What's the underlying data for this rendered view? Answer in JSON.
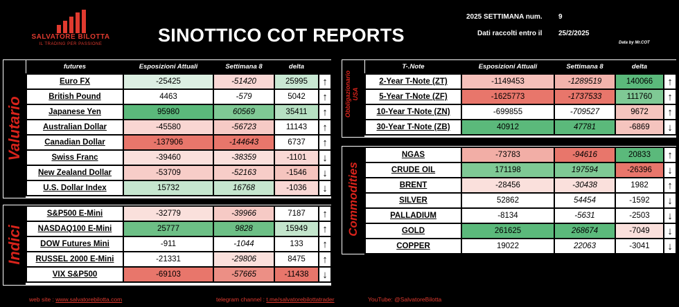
{
  "logo": {
    "name": "SALVATORE BILOTTA",
    "tagline": "IL TRADING PER PASSIONE"
  },
  "title": "SINOTTICO COT REPORTS",
  "week": {
    "label": "2025 SETTIMANA num.",
    "value": "9"
  },
  "collected": {
    "label": "Dati raccolti entro il",
    "value": "25/2/2025"
  },
  "data_by": "Data by Mr.COT",
  "colors": {
    "up_arrow": "#22b14c",
    "down_arrow": "#e02020",
    "brand_red": "#e03a2f",
    "pos_strong": "#5bb97b",
    "neg_strong": "#e8766b"
  },
  "valutario": {
    "label": "Valutario",
    "headers": [
      "futures",
      "Esposizioni Attuali",
      "Settimana 8",
      "delta"
    ],
    "rows": [
      {
        "name": "Euro FX",
        "current": "-25425",
        "prev": "-51420",
        "delta": "25995",
        "arrow": "↑",
        "dir": "up",
        "c1": "#dcefe2",
        "c2": "#f9d8d5",
        "c3": "#c9e8d3"
      },
      {
        "name": "British Pound",
        "current": "4463",
        "prev": "-579",
        "delta": "5042",
        "arrow": "↑",
        "dir": "up",
        "c1": "#ffffff",
        "c2": "#ffffff",
        "c3": "#ffffff"
      },
      {
        "name": "Japanese Yen",
        "current": "95980",
        "prev": "60569",
        "delta": "35411",
        "arrow": "↑",
        "dir": "up",
        "c1": "#5bb97b",
        "c2": "#7fc995",
        "c3": "#b6e0c2"
      },
      {
        "name": "Australian Dollar",
        "current": "-45580",
        "prev": "-56723",
        "delta": "11143",
        "arrow": "↑",
        "dir": "up",
        "c1": "#f9d6d2",
        "c2": "#f6cac5",
        "c3": "#ffffff"
      },
      {
        "name": "Canadian Dollar",
        "current": "-137906",
        "prev": "-144643",
        "delta": "6737",
        "arrow": "↑",
        "dir": "up",
        "c1": "#e8766b",
        "c2": "#e8766b",
        "c3": "#ffffff"
      },
      {
        "name": "Swiss Franc",
        "current": "-39460",
        "prev": "-38359",
        "delta": "-1101",
        "arrow": "↓",
        "dir": "down",
        "c1": "#fae0dc",
        "c2": "#fae0dc",
        "c3": "#f9d8d5"
      },
      {
        "name": "New Zealand Dollar",
        "current": "-53709",
        "prev": "-52163",
        "delta": "-1546",
        "arrow": "↓",
        "dir": "down",
        "c1": "#f7cdc8",
        "c2": "#f7cdc8",
        "c3": "#f5c4be"
      },
      {
        "name": "U.S. Dollar Index",
        "current": "15732",
        "prev": "16768",
        "delta": "-1036",
        "arrow": "↓",
        "dir": "down",
        "c1": "#c6e6cf",
        "c2": "#c6e6cf",
        "c3": "#f9d8d5"
      }
    ]
  },
  "indici": {
    "label": "Indici",
    "rows": [
      {
        "name": "S&P500 E-Mini",
        "current": "-32779",
        "prev": "-39966",
        "delta": "7187",
        "arrow": "↑",
        "dir": "up",
        "c1": "#fae0dc",
        "c2": "#f6cac5",
        "c3": "#ffffff"
      },
      {
        "name": "NASDAQ100 E-Mini",
        "current": "25777",
        "prev": "9828",
        "delta": "15949",
        "arrow": "↑",
        "dir": "up",
        "c1": "#6dbf86",
        "c2": "#6dbf86",
        "c3": "#c3e5cc"
      },
      {
        "name": "DOW Futures Mini",
        "current": "-911",
        "prev": "-1044",
        "delta": "133",
        "arrow": "↑",
        "dir": "up",
        "c1": "#ffffff",
        "c2": "#ffffff",
        "c3": "#ffffff"
      },
      {
        "name": "RUSSEL 2000 E-Mini",
        "current": "-21331",
        "prev": "-29806",
        "delta": "8475",
        "arrow": "↑",
        "dir": "up",
        "c1": "#ffffff",
        "c2": "#fae0dc",
        "c3": "#ffffff"
      },
      {
        "name": "VIX S&P500",
        "current": "-69103",
        "prev": "-57665",
        "delta": "-11438",
        "arrow": "↓",
        "dir": "down",
        "c1": "#e8766b",
        "c2": "#ec8f85",
        "c3": "#e8766b"
      }
    ]
  },
  "obbligazionario": {
    "label": "Obbligazionario USA",
    "label_line1": "Obbligazionario",
    "label_line2": "USA",
    "headers": [
      "T-.Note",
      "Esposizioni Attuali",
      "Settimana 8",
      "delta"
    ],
    "rows": [
      {
        "name": "2-Year T-Note (ZT)",
        "current": "-1149453",
        "prev": "-1289519",
        "delta": "140066",
        "arrow": "↑",
        "dir": "up",
        "c1": "#f5c0ba",
        "c2": "#f2b3ac",
        "c3": "#5bb97b"
      },
      {
        "name": "5-Year T-Note (ZF)",
        "current": "-1625773",
        "prev": "-1737533",
        "delta": "111760",
        "arrow": "↑",
        "dir": "up",
        "c1": "#e8766b",
        "c2": "#e8766b",
        "c3": "#7fc995"
      },
      {
        "name": "10-Year T-Note (ZN)",
        "current": "-699855",
        "prev": "-709527",
        "delta": "9672",
        "arrow": "↑",
        "dir": "up",
        "c1": "#ffffff",
        "c2": "#ffffff",
        "c3": "#f5c4be"
      },
      {
        "name": "30-Year T-Note (ZB)",
        "current": "40912",
        "prev": "47781",
        "delta": "-6869",
        "arrow": "↓",
        "dir": "down",
        "c1": "#5bb97b",
        "c2": "#5bb97b",
        "c3": "#f5c4be"
      }
    ]
  },
  "commodities": {
    "label": "Commodities",
    "rows": [
      {
        "name": "NGAS",
        "current": "-73783",
        "prev": "-94616",
        "delta": "20833",
        "arrow": "↑",
        "dir": "up",
        "c1": "#f2aea6",
        "c2": "#e8766b",
        "c3": "#5bb97b"
      },
      {
        "name": "CRUDE OIL",
        "current": "171198",
        "prev": "197594",
        "delta": "-26396",
        "arrow": "↓",
        "dir": "down",
        "c1": "#7fc995",
        "c2": "#7fc995",
        "c3": "#e8766b"
      },
      {
        "name": "BRENT",
        "current": "-28456",
        "prev": "-30438",
        "delta": "1982",
        "arrow": "↑",
        "dir": "up",
        "c1": "#fae0dc",
        "c2": "#fae0dc",
        "c3": "#ffffff"
      },
      {
        "name": "SILVER",
        "current": "52862",
        "prev": "54454",
        "delta": "-1592",
        "arrow": "↓",
        "dir": "down",
        "c1": "#ffffff",
        "c2": "#ffffff",
        "c3": "#ffffff"
      },
      {
        "name": "PALLADIUM",
        "current": "-8134",
        "prev": "-5631",
        "delta": "-2503",
        "arrow": "↓",
        "dir": "down",
        "c1": "#ffffff",
        "c2": "#ffffff",
        "c3": "#ffffff"
      },
      {
        "name": "GOLD",
        "current": "261625",
        "prev": "268674",
        "delta": "-7049",
        "arrow": "↓",
        "dir": "down",
        "c1": "#5bb97b",
        "c2": "#5bb97b",
        "c3": "#fae0dc"
      },
      {
        "name": "COPPER",
        "current": "19022",
        "prev": "22063",
        "delta": "-3041",
        "arrow": "↓",
        "dir": "down",
        "c1": "#ffffff",
        "c2": "#ffffff",
        "c3": "#ffffff"
      }
    ]
  },
  "footer": {
    "web_label": "web site : ",
    "web_value": "www.salvatorebilotta.com",
    "telegram_label": "telegram channel : ",
    "telegram_value": "t.me/salvatorebilottatrader",
    "youtube": "YouTube: @SalvatoreBilotta"
  }
}
